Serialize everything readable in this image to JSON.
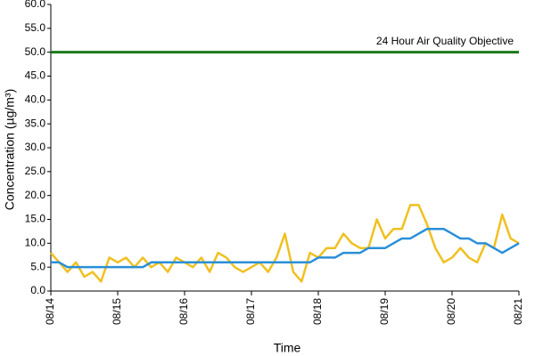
{
  "chart_data": {
    "type": "line",
    "xlabel": "Time",
    "ylabel": "Concentration (µg/m³)",
    "x": [
      0,
      3,
      6,
      9,
      12,
      15,
      18,
      21,
      24,
      27,
      30,
      33,
      36,
      39,
      42,
      45,
      48,
      51,
      54,
      57,
      60,
      63,
      66,
      69,
      72,
      75,
      78,
      81,
      84,
      87,
      90,
      93,
      96,
      99,
      102,
      105,
      108,
      111,
      114,
      117,
      120,
      123,
      126,
      129,
      132,
      135,
      138,
      141,
      144,
      147,
      150,
      153,
      156,
      159,
      162,
      165,
      168
    ],
    "series": [
      {
        "color": "#f0c020",
        "values": [
          8,
          6,
          4,
          6,
          3,
          4,
          2,
          7,
          6,
          7,
          5,
          7,
          5,
          6,
          4,
          7,
          6,
          5,
          7,
          4,
          8,
          7,
          5,
          4,
          5,
          6,
          4,
          7,
          12,
          4,
          2,
          8,
          7,
          9,
          9,
          12,
          10,
          9,
          9,
          15,
          11,
          13,
          13,
          18,
          18,
          14,
          9,
          6,
          7,
          9,
          7,
          6,
          10,
          9,
          16,
          11,
          10
        ]
      },
      {
        "color": "#2a8fd8",
        "values": [
          6,
          6,
          5,
          5,
          5,
          5,
          5,
          5,
          5,
          5,
          5,
          5,
          6,
          6,
          6,
          6,
          6,
          6,
          6,
          6,
          6,
          6,
          6,
          6,
          6,
          6,
          6,
          6,
          6,
          6,
          6,
          6,
          7,
          7,
          7,
          8,
          8,
          8,
          9,
          9,
          9,
          10,
          11,
          11,
          12,
          13,
          13,
          13,
          12,
          11,
          11,
          10,
          10,
          9,
          8,
          9,
          10
        ]
      }
    ],
    "objective": {
      "label": "24 Hour Air Quality Objective",
      "value": 50,
      "color": "#1a7a1a"
    },
    "xlim": [
      0,
      168
    ],
    "xticks": [
      {
        "value": 0,
        "label": "08/14"
      },
      {
        "value": 24,
        "label": "08/15"
      },
      {
        "value": 48,
        "label": "08/16"
      },
      {
        "value": 72,
        "label": "08/17"
      },
      {
        "value": 96,
        "label": "08/18"
      },
      {
        "value": 120,
        "label": "08/19"
      },
      {
        "value": 144,
        "label": "08/20"
      },
      {
        "value": 168,
        "label": "08/21"
      }
    ],
    "ylim": [
      0,
      60
    ],
    "yticks": [
      {
        "value": 0,
        "label": "0.0"
      },
      {
        "value": 5,
        "label": "5.0"
      },
      {
        "value": 10,
        "label": "10.0"
      },
      {
        "value": 15,
        "label": "15.0"
      },
      {
        "value": 20,
        "label": "20.0"
      },
      {
        "value": 25,
        "label": "25.0"
      },
      {
        "value": 30,
        "label": "30.0"
      },
      {
        "value": 35,
        "label": "35.0"
      },
      {
        "value": 40,
        "label": "40.0"
      },
      {
        "value": 45,
        "label": "45.0"
      },
      {
        "value": 50,
        "label": "50.0"
      },
      {
        "value": 55,
        "label": "55.0"
      },
      {
        "value": 60,
        "label": "60.0"
      }
    ]
  }
}
